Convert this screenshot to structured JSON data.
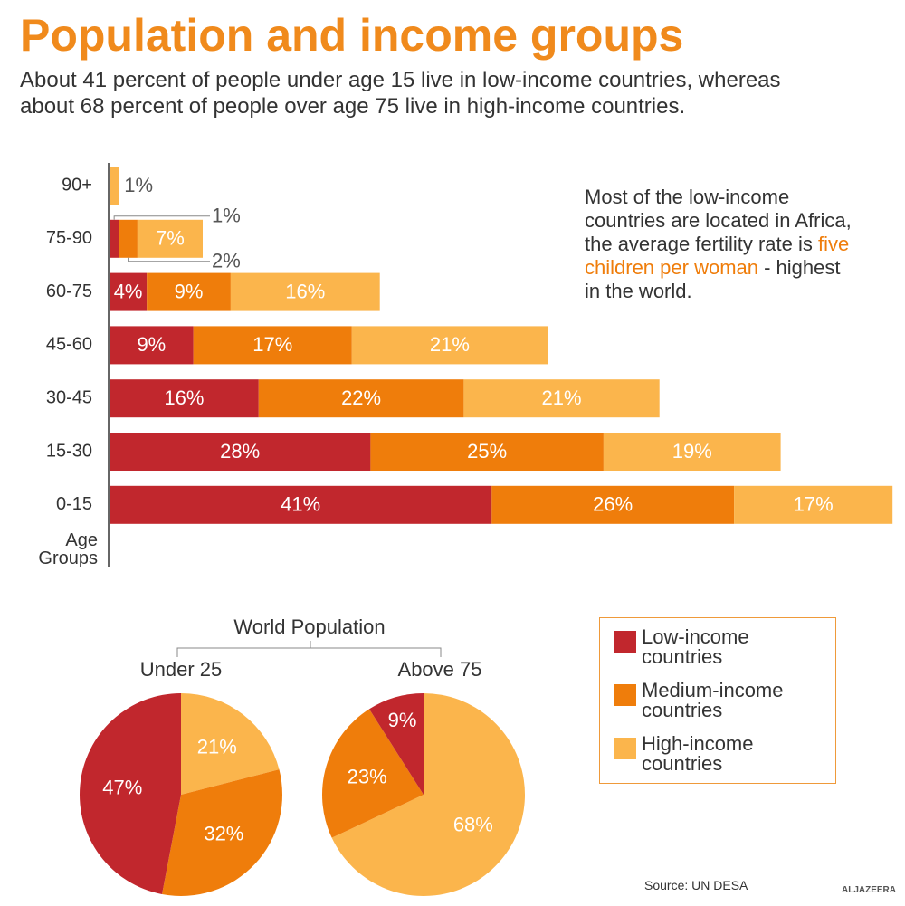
{
  "title": "Population and income groups",
  "subtitle": "About 41 percent of people under age 15 live in low-income countries, whereas about 68 percent of people over age 75 live in high-income countries.",
  "annotation": {
    "before": "Most of the low-income countries are located in Africa, the average fertility rate is",
    "highlight": "five children per woman",
    "after": "- highest in the world."
  },
  "pies_title": "World Population",
  "source": "Source: UN DESA",
  "logo": "ALJAZEERA",
  "chart_data": [
    {
      "type": "bar",
      "orientation": "horizontal",
      "stacked": true,
      "y_label": "Age Groups",
      "categories": [
        "90+",
        "75-90",
        "60-75",
        "45-60",
        "30-45",
        "15-30",
        "0-15"
      ],
      "series": [
        {
          "name": "Low-income countries",
          "color": "#c1272d",
          "values": [
            null,
            1,
            4,
            9,
            16,
            28,
            41
          ],
          "value_labels": [
            null,
            "1%",
            "4%",
            "9%",
            "16%",
            "28%",
            "41%"
          ]
        },
        {
          "name": "Medium-income countries",
          "color": "#ef7d0b",
          "values": [
            null,
            2,
            9,
            17,
            22,
            25,
            26
          ],
          "value_labels": [
            null,
            "2%",
            "9%",
            "17%",
            "22%",
            "25%",
            "26%"
          ]
        },
        {
          "name": "High-income countries",
          "color": "#fbb54c",
          "values": [
            1,
            7,
            16,
            21,
            21,
            19,
            17
          ],
          "value_labels": [
            "1%",
            "7%",
            "16%",
            "21%",
            "21%",
            "19%",
            "17%"
          ]
        }
      ],
      "legend": "right"
    },
    {
      "type": "pie",
      "title": "Under 25",
      "values": [
        21,
        32,
        47
      ],
      "value_labels": [
        "21%",
        "32%",
        "47%"
      ],
      "colors": [
        "#fbb54c",
        "#ef7d0b",
        "#c1272d"
      ]
    },
    {
      "type": "pie",
      "title": "Above 75",
      "values": [
        68,
        23,
        9
      ],
      "value_labels": [
        "68%",
        "23%",
        "9%"
      ],
      "colors": [
        "#fbb54c",
        "#ef7d0b",
        "#c1272d"
      ]
    }
  ]
}
